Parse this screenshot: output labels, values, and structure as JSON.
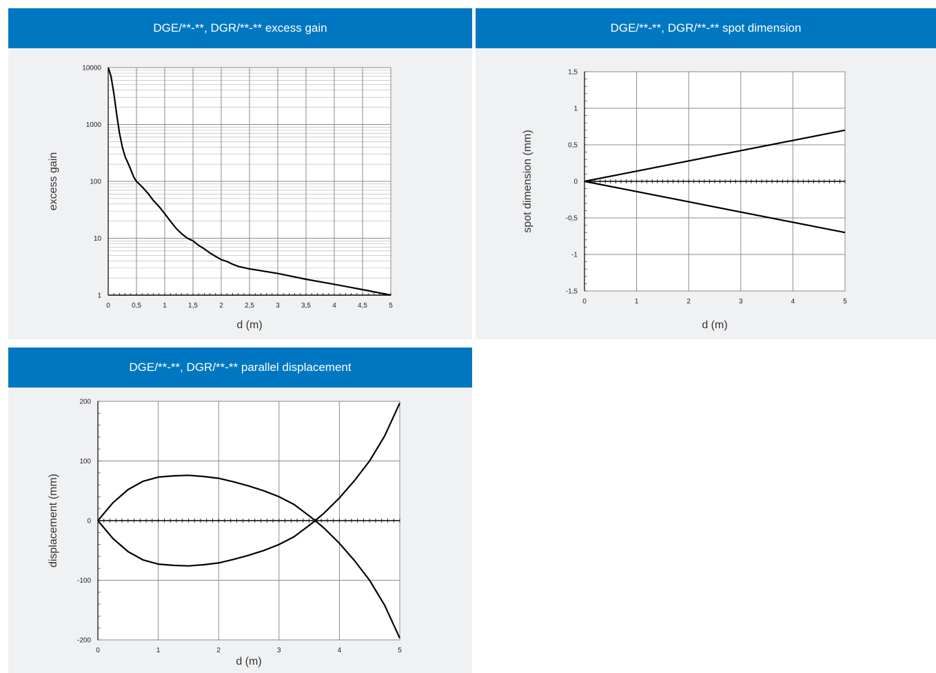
{
  "panels": {
    "excess_gain": {
      "title": "DGE/**-**, DGR/**-** excess gain"
    },
    "spot": {
      "title": "DGE/**-**, DGR/**-** spot dimension"
    },
    "displacement": {
      "title": "DGE/**-**, DGR/**-** parallel displacement"
    }
  },
  "colors": {
    "header": "#0077c0",
    "panel_bg": "#f0f1f3",
    "grid": "#8a8a8a",
    "curve": "#000000"
  },
  "chart_data": [
    {
      "id": "excess_gain",
      "type": "line",
      "title": "DGE/**-**, DGR/**-** excess gain",
      "xlabel": "d (m)",
      "ylabel": "excess gain",
      "yscale": "log",
      "xlim": [
        0,
        5
      ],
      "ylim": [
        1,
        10000
      ],
      "xticks": [
        "0",
        "0,5",
        "1",
        "1,5",
        "2",
        "2,5",
        "3",
        "3,5",
        "4",
        "4,5",
        "5"
      ],
      "yticks": [
        "1",
        "10",
        "100",
        "1000",
        "10000"
      ],
      "grid": true,
      "legend": "none",
      "series": [
        {
          "x": [
            0,
            0.05,
            0.1,
            0.15,
            0.2,
            0.25,
            0.3,
            0.35,
            0.4,
            0.45,
            0.5,
            0.6,
            0.7,
            0.8,
            0.9,
            1.0,
            1.1,
            1.2,
            1.3,
            1.4,
            1.5,
            1.6,
            1.7,
            1.8,
            1.9,
            2.0,
            2.1,
            2.2,
            2.3,
            2.5,
            3.0,
            3.5,
            4.0,
            4.5,
            5.0
          ],
          "y": [
            10000,
            7000,
            3500,
            1500,
            700,
            400,
            270,
            210,
            160,
            120,
            100,
            80,
            62,
            46,
            36,
            27,
            20,
            15,
            12,
            10,
            9,
            7.5,
            6.5,
            5.5,
            4.8,
            4.2,
            3.9,
            3.5,
            3.2,
            2.9,
            2.4,
            1.9,
            1.55,
            1.25,
            1.0
          ]
        }
      ]
    },
    {
      "id": "spot",
      "type": "line",
      "title": "DGE/**-**, DGR/**-** spot dimension",
      "xlabel": "d (m)",
      "ylabel": "spot dimension (mm)",
      "xlim": [
        0,
        5
      ],
      "ylim": [
        -1.5,
        1.5
      ],
      "xticks": [
        "0",
        "1",
        "2",
        "3",
        "4",
        "5"
      ],
      "yticks": [
        "-1,5",
        "-1",
        "-0,5",
        "0",
        "0,5",
        "1",
        "1,5"
      ],
      "grid": true,
      "legend": "none",
      "series": [
        {
          "x": [
            0,
            5
          ],
          "y": [
            0,
            0.7
          ]
        },
        {
          "x": [
            0,
            5
          ],
          "y": [
            0,
            -0.7
          ]
        }
      ]
    },
    {
      "id": "displacement",
      "type": "line",
      "title": "DGE/**-**, DGR/**-** parallel displacement",
      "xlabel": "d (m)",
      "ylabel": "displacement (mm)",
      "xlim": [
        0,
        5
      ],
      "ylim": [
        -200,
        200
      ],
      "xticks": [
        "0",
        "1",
        "2",
        "3",
        "4",
        "5"
      ],
      "yticks": [
        "-200",
        "-100",
        "0",
        "100",
        "200"
      ],
      "grid": true,
      "legend": "none",
      "series": [
        {
          "x": [
            0,
            0.25,
            0.5,
            0.75,
            1.0,
            1.25,
            1.5,
            1.75,
            2.0,
            2.25,
            2.5,
            2.75,
            3.0,
            3.25,
            3.5,
            3.6,
            3.75,
            4.0,
            4.25,
            4.5,
            4.75,
            5.0
          ],
          "y": [
            0,
            30,
            52,
            66,
            73,
            75,
            76,
            74,
            71,
            65,
            58,
            50,
            40,
            27,
            8,
            0,
            -13,
            -38,
            -67,
            -100,
            -142,
            -197
          ]
        },
        {
          "x": [
            0,
            0.25,
            0.5,
            0.75,
            1.0,
            1.25,
            1.5,
            1.75,
            2.0,
            2.25,
            2.5,
            2.75,
            3.0,
            3.25,
            3.5,
            3.6,
            3.75,
            4.0,
            4.25,
            4.5,
            4.75,
            5.0
          ],
          "y": [
            0,
            -30,
            -52,
            -66,
            -73,
            -75,
            -76,
            -74,
            -71,
            -65,
            -58,
            -50,
            -40,
            -27,
            -8,
            0,
            13,
            38,
            67,
            100,
            142,
            197
          ]
        }
      ]
    }
  ]
}
